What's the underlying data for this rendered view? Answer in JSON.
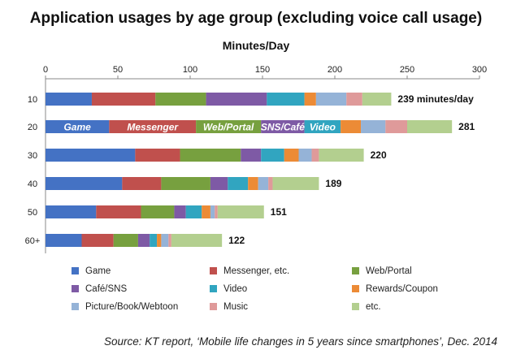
{
  "chart_data": {
    "type": "bar",
    "orientation": "horizontal",
    "stacked": true,
    "title": "Application usages by age group (excluding voice call usage)",
    "xlabel": "Minutes/Day",
    "xlim": [
      0,
      300
    ],
    "xticks": [
      0,
      50,
      100,
      150,
      200,
      250,
      300
    ],
    "grid": false,
    "legend_position": "bottom",
    "categories": [
      "10",
      "20",
      "30",
      "40",
      "50",
      "60+"
    ],
    "series": [
      {
        "name": "Game",
        "color": "#4472c4",
        "values": [
          32,
          44,
          62,
          53,
          35,
          25
        ]
      },
      {
        "name": "Messenger, etc.",
        "color": "#c0504d",
        "values": [
          44,
          60,
          31,
          27,
          31,
          22
        ]
      },
      {
        "name": "Web/Portal",
        "color": "#77a03f",
        "values": [
          35,
          45,
          42,
          34,
          23,
          17
        ]
      },
      {
        "name": "Café/SNS",
        "color": "#7e5aa5",
        "values": [
          42,
          30,
          14,
          12,
          8,
          8
        ]
      },
      {
        "name": "Video",
        "color": "#31a5c0",
        "values": [
          26,
          25,
          16,
          14,
          11,
          5
        ]
      },
      {
        "name": "Rewards/Coupon",
        "color": "#ec8b36",
        "values": [
          8,
          14,
          10,
          7,
          6,
          3
        ]
      },
      {
        "name": "Picture/Book/Webtoon",
        "color": "#95b3d7",
        "values": [
          21,
          17,
          9,
          7,
          3,
          5
        ]
      },
      {
        "name": "Music",
        "color": "#df9a9a",
        "values": [
          11,
          15,
          5,
          3,
          2,
          2
        ]
      },
      {
        "name": "etc.",
        "color": "#b3cf8f",
        "values": [
          20,
          31,
          31,
          32,
          32,
          35
        ]
      }
    ],
    "totals": [
      239,
      281,
      220,
      189,
      151,
      122
    ],
    "total_labels": [
      "239 minutes/day",
      "281",
      "220",
      "189",
      "151",
      "122"
    ],
    "inbar_labels": {
      "category": "20",
      "labels": [
        "Game",
        "Messenger",
        "Web/Portal",
        "SNS/Café",
        "Video"
      ]
    }
  },
  "source": "Source: KT report, ‘Mobile life changes in 5 years since smartphones’, Dec. 2014"
}
